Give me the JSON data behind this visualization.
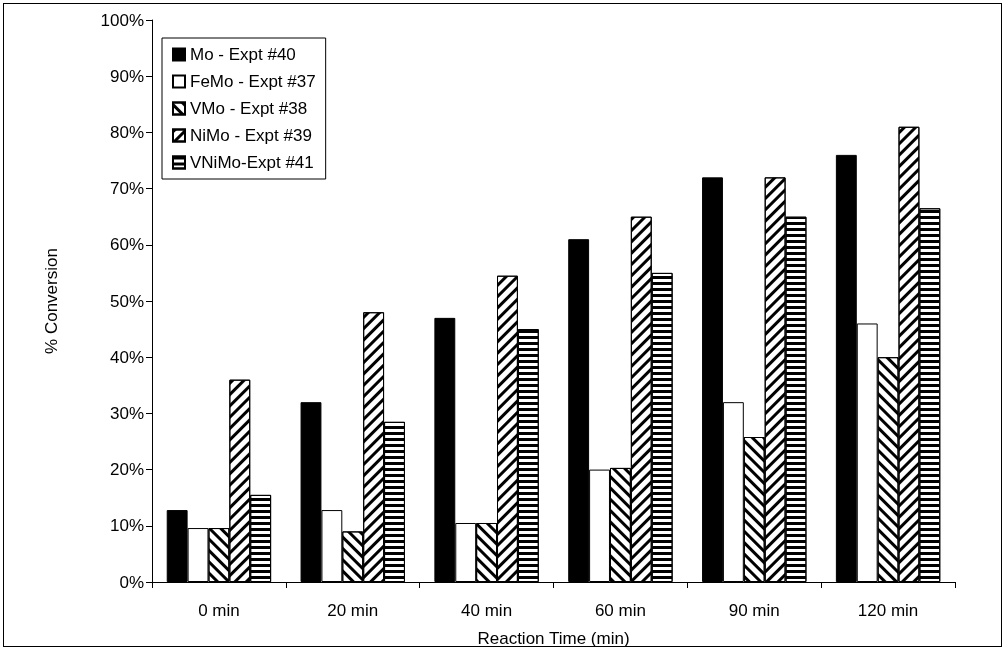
{
  "chart_data": {
    "type": "bar",
    "xlabel": "Reaction Time (min)",
    "ylabel": "% Conversion",
    "categories": [
      "0 min",
      "20 min",
      "40 min",
      "60 min",
      "90 min",
      "120 min"
    ],
    "series": [
      {
        "name": "Mo - Expt #40",
        "color": "#000000",
        "values": [
          12.8,
          32,
          47,
          61,
          72,
          76
        ]
      },
      {
        "name": "FeMo - Expt #37",
        "color": "#ffffff",
        "values": [
          9.6,
          12.8,
          10.5,
          20,
          32,
          46
        ]
      },
      {
        "name": "VMo - Expt #38",
        "color": "#ffffff",
        "values": [
          9.6,
          9,
          10.5,
          20.3,
          25.8,
          40
        ]
      },
      {
        "name": "NiMo - Expt #39",
        "color": "#ffffff",
        "values": [
          36,
          48,
          54.5,
          65,
          72,
          81
        ]
      },
      {
        "name": "VNiMo-Expt #41",
        "color": "#ffffff",
        "values": [
          15.5,
          28.5,
          45,
          55,
          65,
          66.5
        ]
      }
    ],
    "ylim": [
      0,
      100
    ],
    "yticks": [
      {
        "value": 0,
        "label": "0%"
      },
      {
        "value": 10,
        "label": "10%"
      },
      {
        "value": 20,
        "label": "20%"
      },
      {
        "value": 30,
        "label": "30%"
      },
      {
        "value": 40,
        "label": "40%"
      },
      {
        "value": 50,
        "label": "50%"
      },
      {
        "value": 60,
        "label": "60%"
      },
      {
        "value": 70,
        "label": "70%"
      },
      {
        "value": 80,
        "label": "80%"
      },
      {
        "value": 90,
        "label": "90%"
      },
      {
        "value": 100,
        "label": "100%"
      }
    ],
    "grid": false,
    "legend": "top left"
  }
}
